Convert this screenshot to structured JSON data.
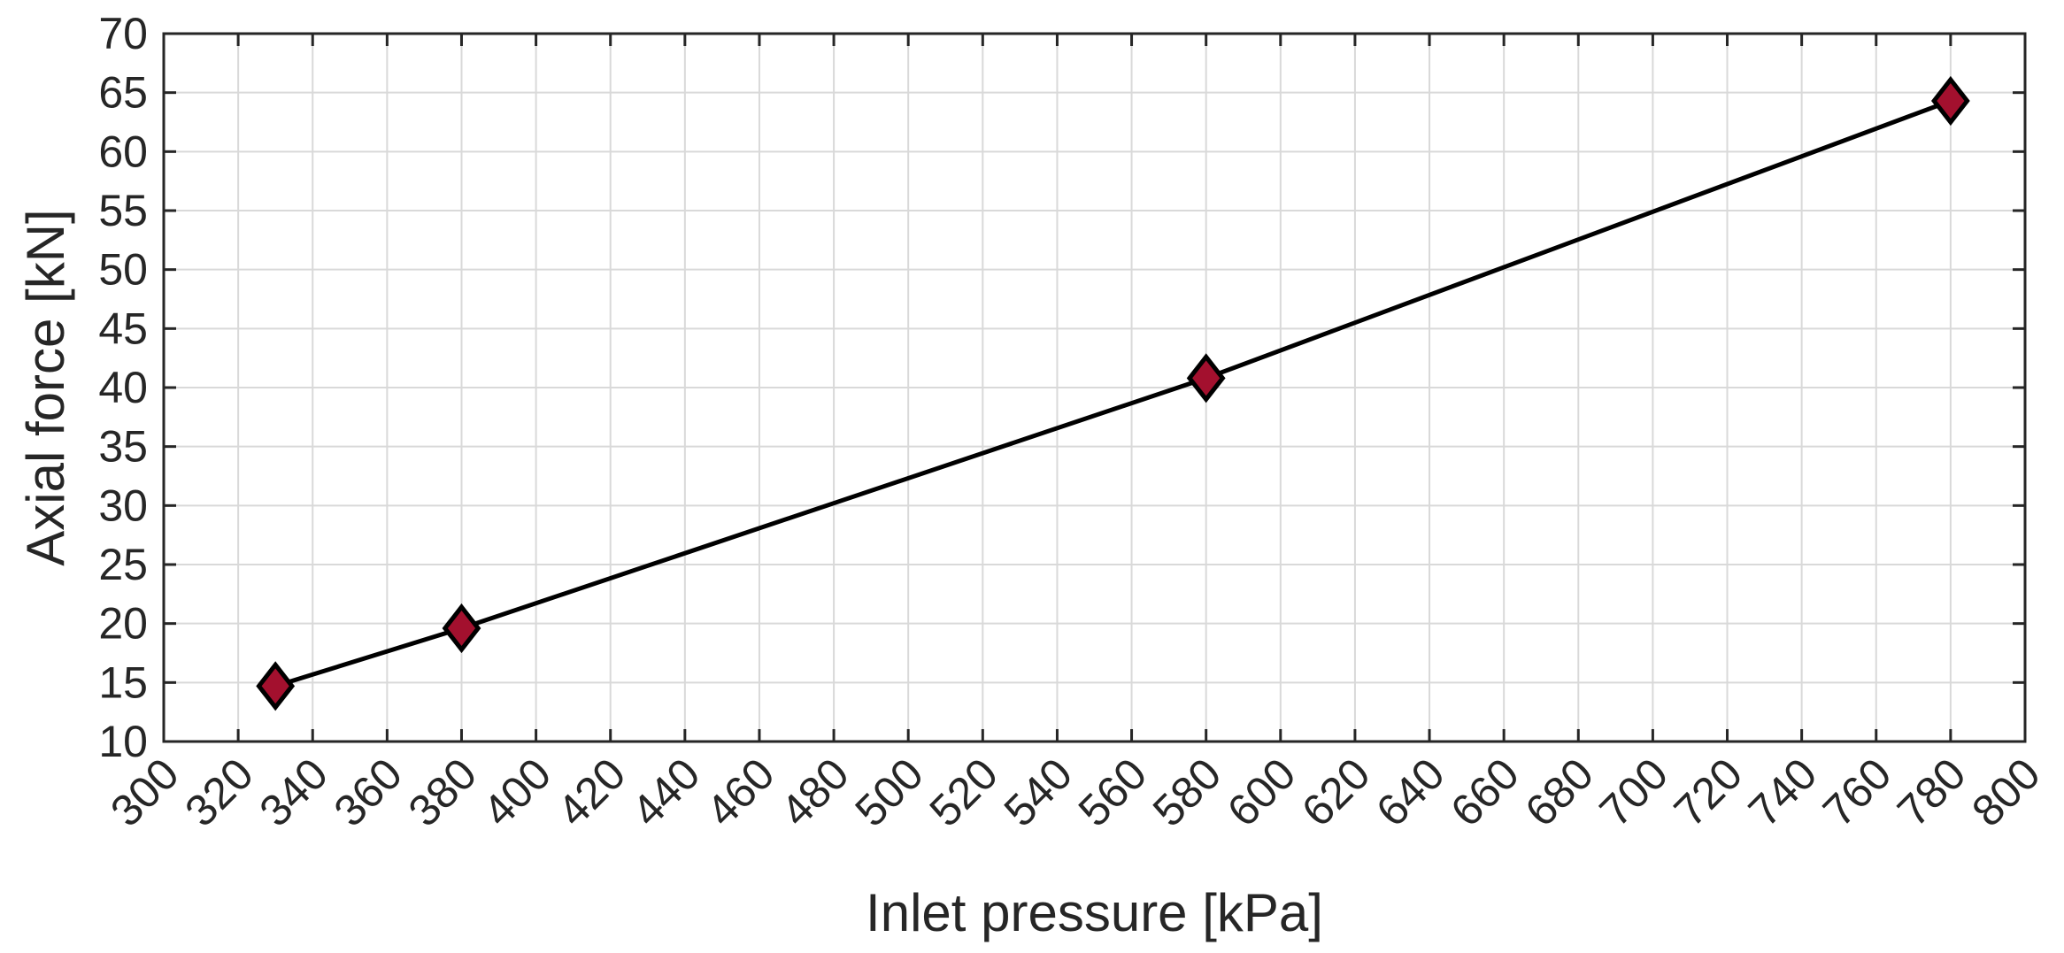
{
  "chart_data": {
    "type": "line",
    "title": "",
    "xlabel": "Inlet pressure [kPa]",
    "ylabel": "Axial force [kN]",
    "xlim": [
      300,
      800
    ],
    "ylim": [
      10,
      70
    ],
    "xticks": [
      300,
      320,
      340,
      360,
      380,
      400,
      420,
      440,
      460,
      480,
      500,
      520,
      540,
      560,
      580,
      600,
      620,
      640,
      660,
      680,
      700,
      720,
      740,
      760,
      780,
      800
    ],
    "yticks": [
      10,
      15,
      20,
      25,
      30,
      35,
      40,
      45,
      50,
      55,
      60,
      65,
      70
    ],
    "xtick_labels": [
      "300",
      "320",
      "340",
      "360",
      "380",
      "400",
      "420",
      "440",
      "460",
      "480",
      "500",
      "520",
      "540",
      "560",
      "580",
      "600",
      "620",
      "640",
      "660",
      "680",
      "700",
      "720",
      "740",
      "760",
      "780",
      "800"
    ],
    "ytick_labels": [
      "10",
      "15",
      "20",
      "25",
      "30",
      "35",
      "40",
      "45",
      "50",
      "55",
      "60",
      "65",
      "70"
    ],
    "grid": true,
    "legend": "none",
    "marker": "diamond",
    "series": [
      {
        "x": [
          330,
          380,
          580,
          780
        ],
        "y": [
          14.7,
          19.6,
          40.8,
          64.3
        ],
        "line_color": "#000000",
        "marker_color": "#A3102E",
        "marker_edge_color": "#000000"
      }
    ],
    "colors": {
      "grid": "#d9d9d9",
      "axes": "#262626",
      "text": "#262626"
    }
  }
}
